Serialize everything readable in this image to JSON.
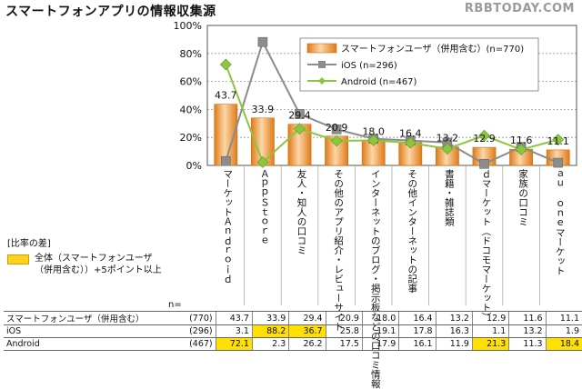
{
  "title": "スマートフォンアプリの情報収集源",
  "watermark": "RBBTODAY.COM",
  "chart_data": {
    "type": "bar",
    "title": "スマートフォンアプリの情報収集源",
    "ylim": [
      0,
      100
    ],
    "yticks": [
      "0%",
      "20%",
      "40%",
      "60%",
      "80%",
      "100%"
    ],
    "categories": [
      "マーケット Android",
      "AppStore",
      "友人・知人の口コミ",
      "その他のアプリ紹介・レビューサイト",
      "インターネットのブログ・掲示板などの口コミ情報",
      "その他インターネットの記事",
      "書籍・雑誌類",
      "dマーケット（ドコモマーケット）",
      "家族の口コミ",
      "au one マーケット"
    ],
    "series": [
      {
        "name": "スマートフォンユーザ（併用含む）(n=770)",
        "type": "bar",
        "values": [
          43.7,
          33.9,
          29.4,
          20.9,
          18.0,
          16.4,
          13.2,
          12.9,
          11.6,
          11.1
        ]
      },
      {
        "name": "iOS (n=296)",
        "type": "line",
        "values": [
          3.1,
          88.2,
          36.7,
          25.8,
          19.1,
          17.8,
          16.3,
          1.1,
          13.2,
          1.9
        ]
      },
      {
        "name": "Android (n=467)",
        "type": "line",
        "values": [
          72.1,
          2.3,
          26.2,
          17.5,
          17.9,
          16.1,
          11.9,
          21.3,
          11.3,
          18.4
        ]
      }
    ],
    "bar_labels": [
      "43.7",
      "33.9",
      "29.4",
      "20.9",
      "18.0",
      "16.4",
      "13.2",
      "12.9",
      "11.6",
      "11.1"
    ],
    "colors": {
      "bar": "#e8902a",
      "bar_light": "#fbd7a8",
      "ios": "#8c8c8c",
      "android": "#8cc63f",
      "highlight": "#ffe000"
    }
  },
  "category_labels": [
    "マーケットＡｎｄｒｏｉｄ",
    "ＡｐｐＳｔｏｒｅ",
    "友人・知人の口コミ",
    "その他のアプリ紹介・レビューサイト",
    "インターネットのブログ・掲示板などの口コミ情報",
    "その他インターネットの記事",
    "書籍・雑誌類",
    "ｄマーケット（ドコモマーケット）",
    "家族の口コミ",
    "ａｕ ｏｎｅマーケット"
  ],
  "diff_legend": {
    "header": "[比率の差]",
    "text": "全体（スマートフォンユーザ（併用含む））+5ポイント以上"
  },
  "table": {
    "n_header": "n=",
    "rows": [
      {
        "label": "スマートフォンユーザ（併用含む）",
        "n": "(770)",
        "values": [
          "43.7",
          "33.9",
          "29.4",
          "20.9",
          "18.0",
          "16.4",
          "13.2",
          "12.9",
          "11.6",
          "11.1"
        ],
        "highlight": [
          false,
          false,
          false,
          false,
          false,
          false,
          false,
          false,
          false,
          false
        ]
      },
      {
        "label": "iOS",
        "n": "(296)",
        "values": [
          "3.1",
          "88.2",
          "36.7",
          "25.8",
          "19.1",
          "17.8",
          "16.3",
          "1.1",
          "13.2",
          "1.9"
        ],
        "highlight": [
          false,
          true,
          true,
          false,
          false,
          false,
          false,
          false,
          false,
          false
        ]
      },
      {
        "label": "Android",
        "n": "(467)",
        "values": [
          "72.1",
          "2.3",
          "26.2",
          "17.5",
          "17.9",
          "16.1",
          "11.9",
          "21.3",
          "11.3",
          "18.4"
        ],
        "highlight": [
          true,
          false,
          false,
          false,
          false,
          false,
          false,
          true,
          false,
          true
        ]
      }
    ]
  }
}
